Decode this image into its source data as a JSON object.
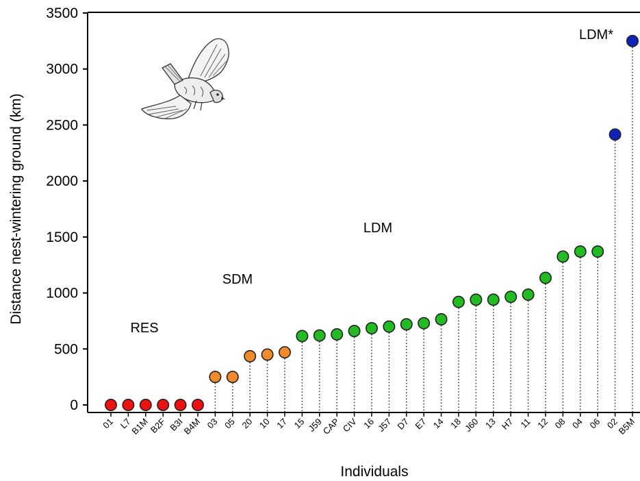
{
  "chart_data": {
    "type": "scatter",
    "xlabel": "Individuals",
    "ylabel": "Distance nest-wintering ground (km)",
    "ylim": [
      0,
      3500
    ],
    "yticks": [
      0,
      500,
      1000,
      1500,
      2000,
      2500,
      3000,
      3500
    ],
    "grid": false,
    "categories": [
      "01",
      "L7",
      "B1M",
      "B2F",
      "B3I",
      "B4M",
      "03",
      "05",
      "20",
      "10",
      "17",
      "15",
      "J59",
      "CAP",
      "CIV",
      "16",
      "J57",
      "D7",
      "E7",
      "14",
      "18",
      "J60",
      "13",
      "H7",
      "11",
      "12",
      "08",
      "04",
      "06",
      "02",
      "B5M"
    ],
    "values": [
      0,
      0,
      0,
      0,
      0,
      0,
      250,
      250,
      435,
      450,
      470,
      615,
      620,
      630,
      660,
      685,
      700,
      720,
      730,
      765,
      920,
      940,
      940,
      965,
      985,
      1135,
      1325,
      1370,
      1370,
      2415,
      3250
    ],
    "groups": [
      "RES",
      "RES",
      "RES",
      "RES",
      "RES",
      "RES",
      "SDM",
      "SDM",
      "SDM",
      "SDM",
      "SDM",
      "LDM",
      "LDM",
      "LDM",
      "LDM",
      "LDM",
      "LDM",
      "LDM",
      "LDM",
      "LDM",
      "LDM",
      "LDM",
      "LDM",
      "LDM",
      "LDM",
      "LDM",
      "LDM",
      "LDM",
      "LDM",
      "LDM*",
      "LDM*"
    ],
    "annotations": [
      {
        "text": "RES",
        "group": "RES"
      },
      {
        "text": "SDM",
        "group": "SDM"
      },
      {
        "text": "LDM",
        "group": "LDM"
      },
      {
        "text": "LDM*",
        "group": "LDM*"
      }
    ],
    "colors": {
      "RES": "#ee1111",
      "SDM": "#f08a2a",
      "LDM": "#22bb22",
      "LDM*": "#1122bb"
    }
  },
  "illustration": {
    "icon": "falcon-icon"
  }
}
